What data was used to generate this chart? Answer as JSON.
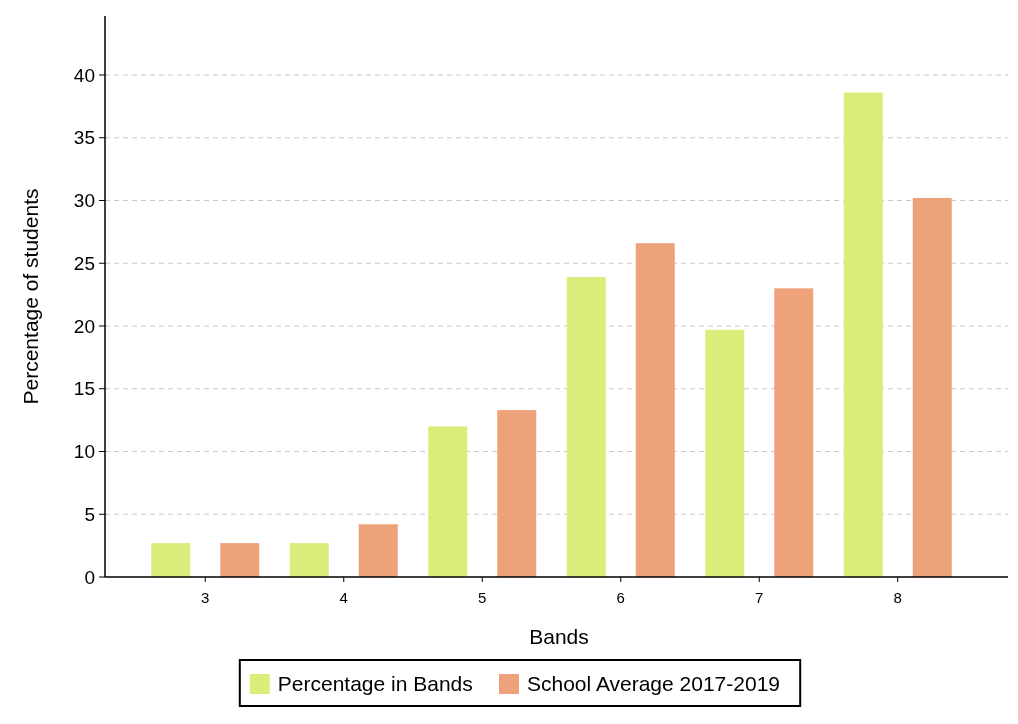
{
  "chart_data": {
    "type": "bar",
    "xlabel": "Bands",
    "ylabel": "Percentage of students",
    "categories": [
      "3",
      "4",
      "5",
      "6",
      "7",
      "8"
    ],
    "series": [
      {
        "name": "Percentage in Bands",
        "color": "#d8ed7a",
        "values": [
          2.7,
          2.7,
          12.0,
          23.9,
          19.7,
          38.6
        ]
      },
      {
        "name": "School Average 2017-2019",
        "color": "#eea279",
        "values": [
          2.7,
          4.2,
          13.3,
          26.6,
          23.0,
          30.2
        ]
      }
    ],
    "ylim": [
      0,
      44.7
    ],
    "yticks": [
      0,
      5,
      10,
      15,
      20,
      25,
      30,
      35,
      40
    ],
    "grid": "y",
    "legend": "bottom"
  }
}
